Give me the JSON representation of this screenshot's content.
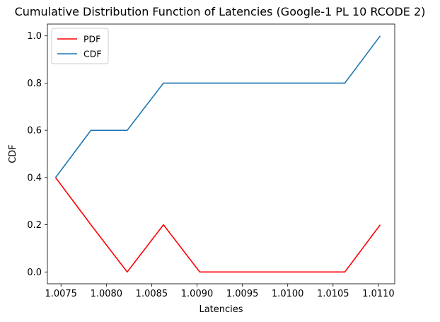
{
  "chart_data": {
    "type": "line",
    "title": "Cumulative Distribution Function of Latencies (Google-1 PL 10 RCODE 2)",
    "xlabel": "Latencies",
    "ylabel": "CDF",
    "xlim": [
      1.00735,
      1.01118
    ],
    "ylim": [
      -0.05,
      1.05
    ],
    "xticks": [
      1.0075,
      1.008,
      1.0085,
      1.009,
      1.0095,
      1.01,
      1.0105,
      1.011
    ],
    "xtick_labels": [
      "1.0075",
      "1.0080",
      "1.0085",
      "1.0090",
      "1.0095",
      "1.0100",
      "1.0105",
      "1.0110"
    ],
    "yticks": [
      0.0,
      0.2,
      0.4,
      0.6,
      0.8,
      1.0
    ],
    "ytick_labels": [
      "0.0",
      "0.2",
      "0.4",
      "0.6",
      "0.8",
      "1.0"
    ],
    "grid": false,
    "legend_position": "top-left",
    "series": [
      {
        "name": "PDF",
        "color": "#ff0000",
        "x": [
          1.00744,
          1.00783,
          1.00823,
          1.00863,
          1.00903,
          1.00943,
          1.00983,
          1.01023,
          1.01063,
          1.01102
        ],
        "y": [
          0.4,
          0.2,
          0.0,
          0.2,
          0.0,
          0.0,
          0.0,
          0.0,
          0.0,
          0.2
        ]
      },
      {
        "name": "CDF",
        "color": "#1f77b4",
        "x": [
          1.00744,
          1.00783,
          1.00823,
          1.00863,
          1.00903,
          1.00943,
          1.00983,
          1.01023,
          1.01063,
          1.01102
        ],
        "y": [
          0.4,
          0.6,
          0.6,
          0.8,
          0.8,
          0.8,
          0.8,
          0.8,
          0.8,
          1.0
        ]
      }
    ]
  }
}
